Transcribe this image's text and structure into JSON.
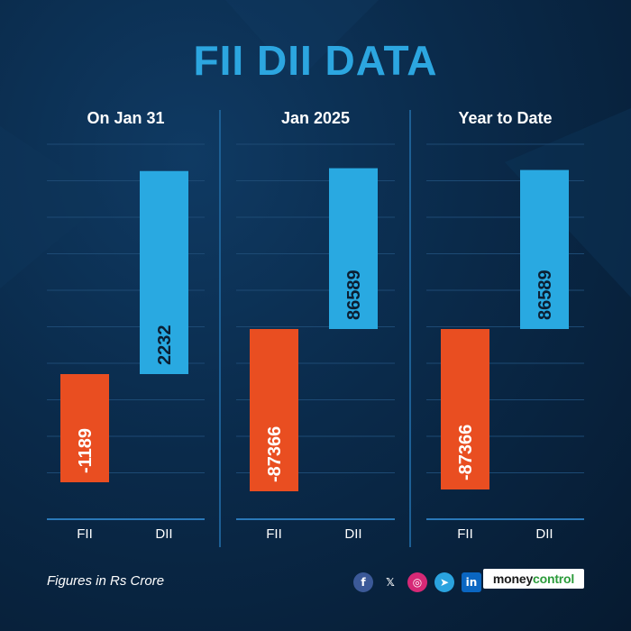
{
  "title": "FII DII DATA",
  "footer": {
    "note": "Figures in Rs Crore"
  },
  "brand": {
    "part1": "money",
    "part2": "control"
  },
  "social": [
    "f",
    "𝕏",
    "◎",
    "➤",
    "in"
  ],
  "colors": {
    "fii": "#e94e21",
    "dii": "#29a9e1",
    "title": "#2ca6e0",
    "grid": "#1d4a74",
    "baseline": "#2a78b8"
  },
  "chart_data": [
    {
      "type": "bar",
      "title": "On Jan 31",
      "categories": [
        "FII",
        "DII"
      ],
      "values": [
        -1189,
        2232
      ]
    },
    {
      "type": "bar",
      "title": "Jan 2025",
      "categories": [
        "FII",
        "DII"
      ],
      "values": [
        -87366,
        86589
      ]
    },
    {
      "type": "bar",
      "title": "Year to Date",
      "categories": [
        "FII",
        "DII"
      ],
      "values": [
        -87366,
        86589
      ]
    }
  ]
}
